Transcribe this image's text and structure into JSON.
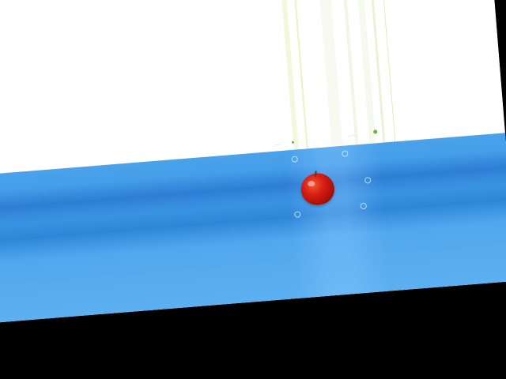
{
  "desktop": {
    "background_color": "#4aa2ea",
    "accent_dark": "#2f86d8",
    "border_color": "#000000"
  },
  "window": {
    "background_color": "#ffffff",
    "label_left": "········",
    "label_right": "··········",
    "badge_color": "#69b33a"
  },
  "icons": {
    "apple": "apple-icon"
  }
}
